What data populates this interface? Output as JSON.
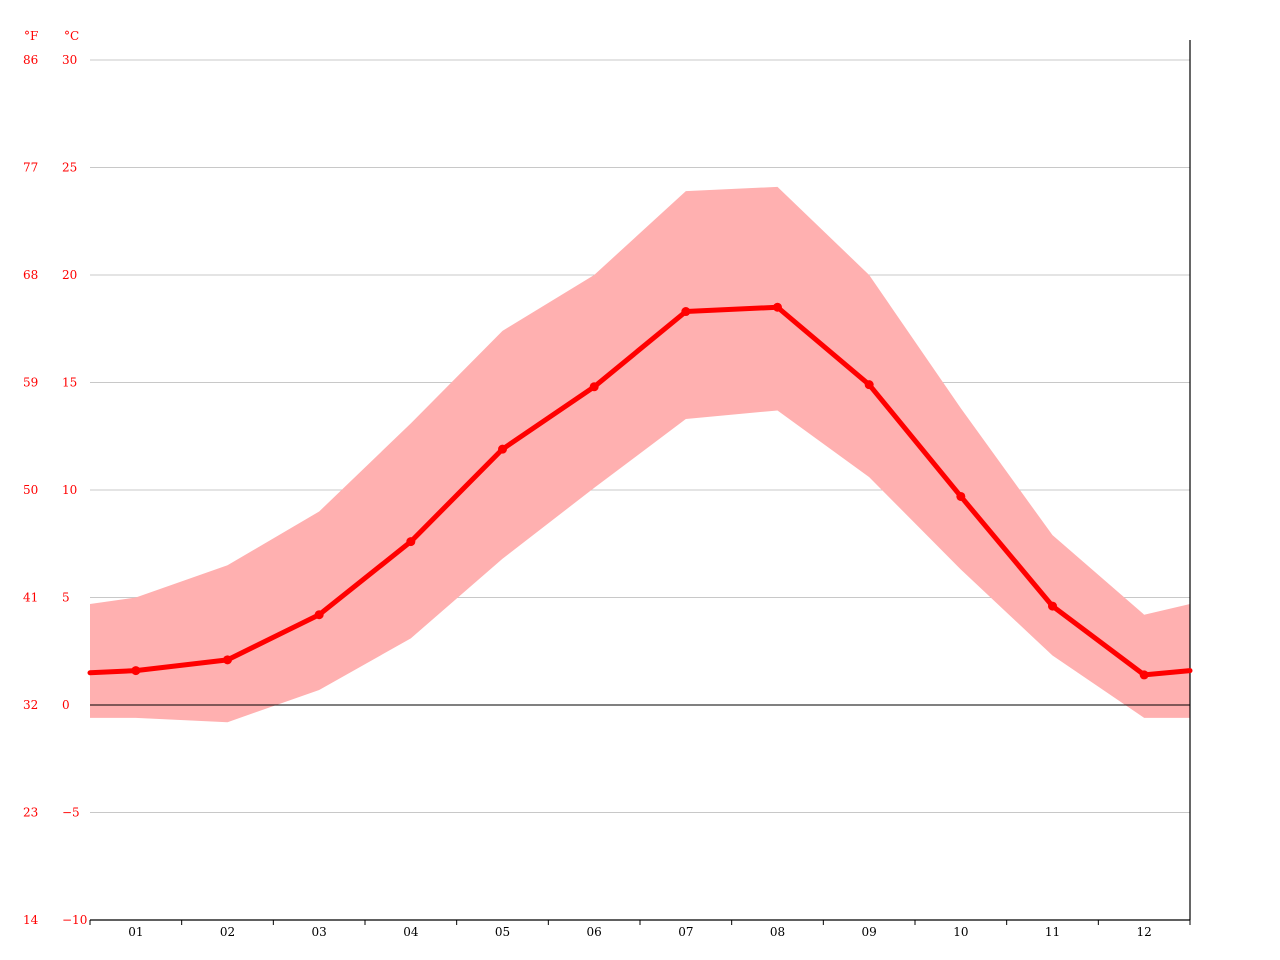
{
  "chart_data": {
    "type": "line",
    "x_categories": [
      "01",
      "02",
      "03",
      "04",
      "05",
      "06",
      "07",
      "08",
      "09",
      "10",
      "11",
      "12"
    ],
    "y_axis_celsius": {
      "unit_label": "°C",
      "ticks": [
        30,
        25,
        20,
        15,
        10,
        5,
        0,
        -5,
        -10
      ],
      "tick_labels": [
        "30",
        "25",
        "20",
        "15",
        "10",
        "5",
        "0",
        "−5",
        "−10"
      ],
      "ylim": [
        -10,
        30
      ]
    },
    "y_axis_fahrenheit": {
      "unit_label": "°F",
      "tick_labels": [
        "86",
        "77",
        "68",
        "59",
        "50",
        "41",
        "32",
        "23",
        "14"
      ]
    },
    "series": [
      {
        "role": "average",
        "values": [
          1.6,
          2.1,
          4.2,
          7.6,
          11.9,
          14.8,
          18.3,
          18.5,
          14.9,
          9.7,
          4.6,
          1.4
        ]
      },
      {
        "role": "range",
        "max_values": [
          5.0,
          6.5,
          9.0,
          13.1,
          17.4,
          20.0,
          23.9,
          24.1,
          20.0,
          13.8,
          7.9,
          4.2
        ],
        "min_values": [
          -0.6,
          -0.8,
          0.7,
          3.1,
          6.8,
          10.1,
          13.3,
          13.7,
          10.6,
          6.3,
          2.3,
          -0.6
        ]
      }
    ],
    "edge_values": {
      "left": {
        "average": 1.5,
        "max": 4.7,
        "min": -0.6
      },
      "right": {
        "average": 1.6,
        "max": 4.7,
        "min": -0.6
      }
    },
    "grid": true,
    "colors": {
      "line": "#ff0000",
      "range_fill": "#ffb0b0",
      "axis_labels": "#ff0000",
      "grid": "#c8c8c8",
      "zero_line": "#000000"
    }
  }
}
